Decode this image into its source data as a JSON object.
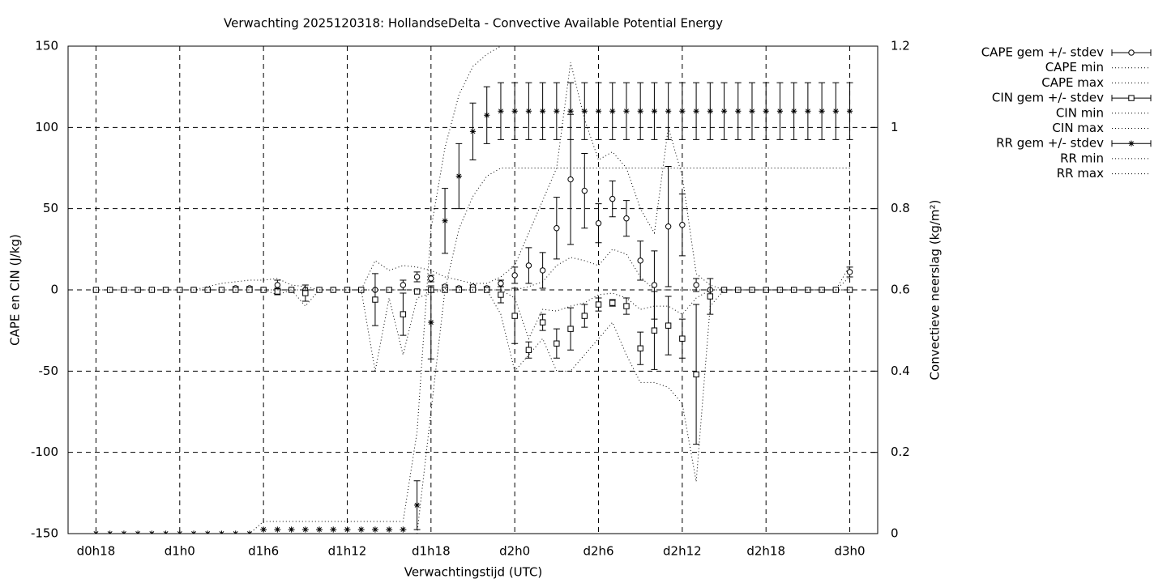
{
  "chart_data": {
    "type": "errorbar-line",
    "title": "Verwachting 2025120318: HollandseDelta - Convective Available Potential Energy",
    "x_label": "Verwachtingstijd (UTC)",
    "y_label": "CAPE en CIN (J/kg)",
    "y2_label": "Convectieve neerslag (kg/m²)",
    "x": [
      18,
      19,
      20,
      21,
      22,
      23,
      24,
      25,
      26,
      27,
      28,
      29,
      30,
      31,
      32,
      33,
      34,
      35,
      36,
      37,
      38,
      39,
      40,
      41,
      42,
      43,
      44,
      45,
      46,
      47,
      48,
      49,
      50,
      51,
      52,
      53,
      54,
      55,
      56,
      57,
      58,
      59,
      60,
      61,
      62,
      63,
      64,
      65,
      66,
      67,
      68,
      69,
      70,
      71,
      72
    ],
    "xlim": [
      16,
      74
    ],
    "xticks": [
      {
        "value": 18,
        "label": "d0h18"
      },
      {
        "value": 24,
        "label": "d1h0"
      },
      {
        "value": 30,
        "label": "d1h6"
      },
      {
        "value": 36,
        "label": "d1h12"
      },
      {
        "value": 42,
        "label": "d1h18"
      },
      {
        "value": 48,
        "label": "d2h0"
      },
      {
        "value": 54,
        "label": "d2h6"
      },
      {
        "value": 60,
        "label": "d2h12"
      },
      {
        "value": 66,
        "label": "d2h18"
      },
      {
        "value": 72,
        "label": "d3h0"
      }
    ],
    "ylim": [
      -150,
      150
    ],
    "yticks": [
      -150,
      -100,
      -50,
      0,
      50,
      100,
      150
    ],
    "y2lim": [
      0,
      1.2
    ],
    "y2ticks": [
      0,
      0.2,
      0.4,
      0.6,
      0.8,
      1,
      1.2
    ],
    "grid": true,
    "legend": "right",
    "series": [
      {
        "name": "CAPE gem +/- stdev",
        "color": "#000000",
        "style": "errorbars",
        "marker": "circle",
        "values": [
          0,
          0,
          0,
          0,
          0,
          0,
          0,
          0,
          0,
          0,
          1,
          1,
          0,
          3,
          0,
          0,
          0,
          0,
          0,
          0,
          0,
          0,
          3,
          8,
          7,
          2,
          1,
          2,
          1,
          4,
          9,
          15,
          12,
          38,
          68,
          61,
          41,
          56,
          44,
          18,
          3,
          39,
          40,
          3,
          0,
          0,
          0,
          0,
          0,
          0,
          0,
          0,
          0,
          0,
          11
        ],
        "stdev": [
          0,
          0,
          0,
          0,
          0,
          0,
          0,
          0,
          0,
          0,
          1,
          1,
          0,
          3,
          0,
          0,
          0,
          0,
          0,
          0,
          0,
          0,
          3,
          3,
          2,
          1,
          1,
          1,
          1,
          2,
          5,
          11,
          11,
          19,
          40,
          23,
          12,
          11,
          11,
          12,
          21,
          37,
          19,
          4,
          0,
          0,
          0,
          0,
          0,
          0,
          0,
          0,
          0,
          0,
          3
        ]
      },
      {
        "name": "CAPE min",
        "color": "#000000",
        "style": "dotted",
        "values": [
          0,
          0,
          0,
          0,
          0,
          0,
          0,
          0,
          0,
          0,
          0,
          0,
          0,
          0,
          0,
          0,
          0,
          0,
          0,
          0,
          0,
          0,
          0,
          0,
          0,
          0,
          0,
          0,
          0,
          0,
          0,
          2,
          5,
          15,
          20,
          18,
          15,
          25,
          22,
          8,
          0,
          0,
          0,
          0,
          0,
          0,
          0,
          0,
          0,
          0,
          0,
          0,
          0,
          0,
          8
        ]
      },
      {
        "name": "CAPE max",
        "color": "#000000",
        "style": "dotted",
        "values": [
          0,
          0,
          0,
          0,
          0,
          0,
          0,
          0,
          2,
          4,
          5,
          6,
          6,
          7,
          3,
          2,
          0,
          0,
          0,
          0,
          18,
          12,
          15,
          14,
          12,
          8,
          6,
          4,
          4,
          8,
          15,
          35,
          55,
          75,
          140,
          105,
          80,
          85,
          75,
          50,
          35,
          100,
          70,
          10,
          3,
          0,
          0,
          0,
          0,
          0,
          0,
          0,
          0,
          0,
          15
        ]
      },
      {
        "name": "CIN gem +/- stdev",
        "color": "#000000",
        "style": "errorbars",
        "marker": "square",
        "values": [
          0,
          0,
          0,
          0,
          0,
          0,
          0,
          0,
          0,
          0,
          0,
          0,
          0,
          -1,
          0,
          -2,
          0,
          0,
          0,
          0,
          -6,
          0,
          -15,
          -1,
          0,
          0,
          0,
          0,
          0,
          -3,
          -16,
          -37,
          -20,
          -33,
          -24,
          -16,
          -9,
          -8,
          -10,
          -36,
          -25,
          -22,
          -30,
          -52,
          -4,
          0,
          0,
          0,
          0,
          0,
          0,
          0,
          0,
          0,
          0
        ],
        "stdev": [
          0,
          0,
          0,
          0,
          0,
          0,
          0,
          0,
          0,
          0,
          0,
          0,
          0,
          2,
          0,
          5,
          0,
          0,
          0,
          0,
          16,
          0,
          13,
          0,
          0,
          0,
          0,
          0,
          0,
          5,
          17,
          5,
          5,
          9,
          13,
          7,
          4,
          2,
          5,
          10,
          24,
          18,
          12,
          43,
          11,
          0,
          0,
          0,
          0,
          0,
          0,
          0,
          0,
          0,
          0
        ]
      },
      {
        "name": "CIN min",
        "color": "#000000",
        "style": "dotted",
        "values": [
          0,
          0,
          0,
          0,
          0,
          0,
          0,
          0,
          0,
          0,
          0,
          0,
          0,
          -3,
          0,
          -10,
          0,
          0,
          0,
          0,
          -50,
          -5,
          -40,
          -5,
          -2,
          0,
          0,
          0,
          0,
          -15,
          -50,
          -40,
          -30,
          -50,
          -50,
          -40,
          -30,
          -20,
          -40,
          -57,
          -57,
          -60,
          -70,
          -118,
          -10,
          0,
          0,
          0,
          0,
          0,
          0,
          0,
          0,
          0,
          0
        ]
      },
      {
        "name": "CIN max",
        "color": "#000000",
        "style": "dotted",
        "values": [
          0,
          0,
          0,
          0,
          0,
          0,
          0,
          0,
          0,
          0,
          0,
          0,
          0,
          0,
          0,
          0,
          0,
          0,
          0,
          0,
          0,
          0,
          0,
          0,
          0,
          0,
          0,
          0,
          0,
          0,
          -5,
          -30,
          -12,
          -13,
          -10,
          -8,
          -3,
          -2,
          -5,
          -12,
          -10,
          -10,
          -15,
          -5,
          0,
          0,
          0,
          0,
          0,
          0,
          0,
          0,
          0,
          0,
          0
        ]
      },
      {
        "name": "RR gem +/- stdev",
        "color": "#000000",
        "style": "errorbars",
        "marker": "star",
        "axis": "y2",
        "values": [
          0,
          0,
          0,
          0,
          0,
          0,
          0,
          0,
          0,
          0,
          0,
          0,
          0.01,
          0.01,
          0.01,
          0.01,
          0.01,
          0.01,
          0.01,
          0.01,
          0.01,
          0.01,
          0.01,
          0.07,
          0.52,
          0.77,
          0.88,
          0.99,
          1.03,
          1.04,
          1.04,
          1.04,
          1.04,
          1.04,
          1.04,
          1.04,
          1.04,
          1.04,
          1.04,
          1.04,
          1.04,
          1.04,
          1.04,
          1.04,
          1.04,
          1.04,
          1.04,
          1.04,
          1.04,
          1.04,
          1.04,
          1.04,
          1.04,
          1.04,
          1.04
        ],
        "stdev": [
          0,
          0,
          0,
          0,
          0,
          0,
          0,
          0,
          0,
          0,
          0,
          0,
          0,
          0,
          0,
          0,
          0,
          0,
          0,
          0,
          0,
          0,
          0,
          0.06,
          0.09,
          0.08,
          0.08,
          0.07,
          0.07,
          0.07,
          0.07,
          0.07,
          0.07,
          0.07,
          0.07,
          0.07,
          0.07,
          0.07,
          0.07,
          0.07,
          0.07,
          0.07,
          0.07,
          0.07,
          0.07,
          0.07,
          0.07,
          0.07,
          0.07,
          0.07,
          0.07,
          0.07,
          0.07,
          0.07,
          0.07
        ]
      },
      {
        "name": "RR min",
        "color": "#000000",
        "style": "dotted",
        "axis": "y2",
        "values": [
          0,
          0,
          0,
          0,
          0,
          0,
          0,
          0,
          0,
          0,
          0,
          0,
          0,
          0,
          0,
          0,
          0,
          0,
          0,
          0,
          0,
          0,
          0,
          0,
          0.3,
          0.6,
          0.75,
          0.83,
          0.88,
          0.9,
          0.9,
          0.9,
          0.9,
          0.9,
          0.9,
          0.9,
          0.9,
          0.9,
          0.9,
          0.9,
          0.9,
          0.9,
          0.9,
          0.9,
          0.9,
          0.9,
          0.9,
          0.9,
          0.9,
          0.9,
          0.9,
          0.9,
          0.9,
          0.9,
          0.9
        ]
      },
      {
        "name": "RR max",
        "color": "#000000",
        "style": "dotted",
        "axis": "y2",
        "values": [
          0,
          0,
          0,
          0,
          0,
          0,
          0,
          0,
          0,
          0,
          0,
          0,
          0.03,
          0.03,
          0.03,
          0.03,
          0.03,
          0.03,
          0.03,
          0.03,
          0.03,
          0.03,
          0.03,
          0.25,
          0.75,
          0.95,
          1.08,
          1.15,
          1.18,
          1.2,
          1.2,
          1.2,
          1.2,
          1.2,
          1.2,
          1.2,
          1.2,
          1.2,
          1.2,
          1.2,
          1.2,
          1.2,
          1.2,
          1.2,
          1.2,
          1.2,
          1.2,
          1.2,
          1.2,
          1.2,
          1.2,
          1.2,
          1.2,
          1.2,
          1.2
        ]
      }
    ]
  }
}
